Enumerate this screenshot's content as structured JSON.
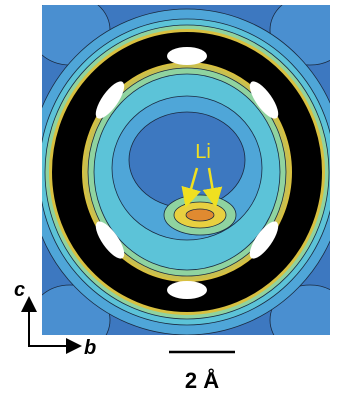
{
  "annotation": {
    "atom_label": "Li"
  },
  "axes": {
    "vertical": "c",
    "horizontal": "b"
  },
  "scale_bar": {
    "label": "2 Å"
  }
}
